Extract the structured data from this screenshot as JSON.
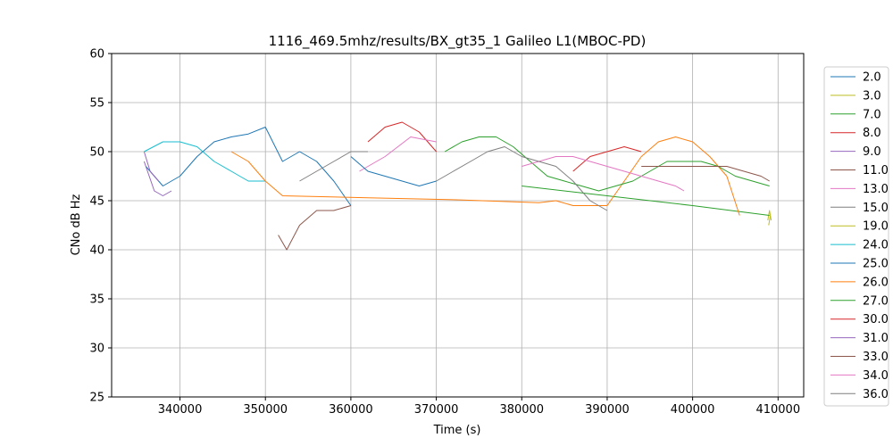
{
  "chart_data": {
    "type": "line",
    "title": "1116_469.5mhz/results/BX_gt35_1 Galileo L1(MBOC-PD)",
    "xlabel": "Time (s)",
    "ylabel": "CNo dB Hz",
    "xlim": [
      332000,
      413000
    ],
    "ylim": [
      25,
      60
    ],
    "xticks": [
      340000,
      350000,
      360000,
      370000,
      380000,
      390000,
      400000,
      410000
    ],
    "yticks": [
      25,
      30,
      35,
      40,
      45,
      50,
      55,
      60
    ],
    "grid": true,
    "legend_position": "outside-right",
    "series": [
      {
        "name": "2.0",
        "color": "#1f77b4",
        "x": [
          336000,
          338000,
          340000,
          342000,
          344000,
          346000,
          348000,
          350000,
          352000,
          354000,
          356000,
          358000,
          360000
        ],
        "y": [
          48.5,
          46.5,
          47.5,
          49.5,
          51,
          51.5,
          51.8,
          52.5,
          49,
          50,
          49,
          47,
          44.5
        ]
      },
      {
        "name": "3.0",
        "color": "#bcbd22",
        "x": [
          408800,
          409000,
          409200
        ],
        "y": [
          43,
          44,
          43
        ]
      },
      {
        "name": "7.0",
        "color": "#2ca02c",
        "x": [
          380000,
          390000,
          400000,
          409000
        ],
        "y": [
          46.5,
          45.5,
          44.5,
          43.5
        ]
      },
      {
        "name": "8.0",
        "color": "#d62728",
        "x": [
          362000,
          364000,
          366000,
          368000,
          370000
        ],
        "y": [
          51,
          52.5,
          53,
          52,
          50
        ]
      },
      {
        "name": "9.0",
        "color": "#9467bd",
        "x": [
          335800,
          336500,
          337000,
          337500
        ],
        "y": [
          50,
          48,
          47.5,
          47
        ]
      },
      {
        "name": "11.0",
        "color": "#8c564b",
        "x": [
          351500,
          352500,
          354000,
          356000,
          358000,
          360000
        ],
        "y": [
          41.5,
          40,
          42.5,
          44,
          44,
          44.5
        ]
      },
      {
        "name": "13.0",
        "color": "#e377c2",
        "x": [
          361000,
          364000,
          367000,
          370000
        ],
        "y": [
          48,
          49.5,
          51.5,
          51
        ]
      },
      {
        "name": "15.0",
        "color": "#7f7f7f",
        "x": [
          354000,
          356000,
          358000,
          360000,
          362000
        ],
        "y": [
          47,
          48,
          49,
          50,
          50
        ]
      },
      {
        "name": "19.0",
        "color": "#bcbd22",
        "x": [
          408900,
          409100
        ],
        "y": [
          42.5,
          43.5
        ]
      },
      {
        "name": "24.0",
        "color": "#17becf",
        "x": [
          335800,
          338000,
          340000,
          342000,
          344000,
          346000,
          348000,
          350000
        ],
        "y": [
          50,
          51,
          51,
          50.5,
          49,
          48,
          47,
          47
        ]
      },
      {
        "name": "25.0",
        "color": "#1f77b4",
        "x": [
          360000,
          362000,
          364000,
          366000,
          368000,
          370000
        ],
        "y": [
          49.5,
          48,
          47.5,
          47,
          46.5,
          47
        ]
      },
      {
        "name": "26.0",
        "color": "#ff7f0e",
        "x": [
          346000,
          348000,
          350000,
          352000,
          362000,
          372000,
          382000,
          384000,
          386000,
          390000,
          392000,
          394000,
          396000,
          398000,
          400000,
          402000,
          404000,
          405500
        ],
        "y": [
          50,
          49,
          47,
          45.5,
          45.3,
          45.1,
          44.8,
          45,
          44.5,
          44.5,
          47,
          49.5,
          51,
          51.5,
          51,
          49.5,
          47.5,
          43.5
        ]
      },
      {
        "name": "27.0",
        "color": "#2ca02c",
        "x": [
          371000,
          373000,
          375000,
          377000,
          379000,
          381000,
          383000,
          385000,
          387000,
          389000,
          391000,
          393000,
          395000,
          397000,
          399000,
          401000,
          403000,
          405000,
          407000,
          409000
        ],
        "y": [
          50,
          51,
          51.5,
          51.5,
          50.5,
          49,
          47.5,
          47,
          46.5,
          46,
          46.5,
          47,
          48,
          49,
          49,
          49,
          48.5,
          47.5,
          47,
          46.5
        ]
      },
      {
        "name": "30.0",
        "color": "#d62728",
        "x": [
          386000,
          388000,
          390000,
          392000,
          394000
        ],
        "y": [
          48,
          49.5,
          50,
          50.5,
          50
        ]
      },
      {
        "name": "31.0",
        "color": "#9467bd",
        "x": [
          335800,
          337000,
          338000,
          339000
        ],
        "y": [
          49,
          46,
          45.5,
          46
        ]
      },
      {
        "name": "33.0",
        "color": "#8c564b",
        "x": [
          394000,
          396000,
          398000,
          400000,
          402000,
          404000,
          406000,
          408000,
          409000
        ],
        "y": [
          48.5,
          48.5,
          48.5,
          48.5,
          48.5,
          48.5,
          48,
          47.5,
          47
        ]
      },
      {
        "name": "34.0",
        "color": "#e377c2",
        "x": [
          380000,
          382000,
          384000,
          386000,
          388000,
          390000,
          392000,
          394000,
          396000,
          398000,
          399000
        ],
        "y": [
          48.5,
          49,
          49.5,
          49.5,
          49,
          48.5,
          48,
          47.5,
          47,
          46.5,
          46
        ]
      },
      {
        "name": "36.0",
        "color": "#7f7f7f",
        "x": [
          370000,
          372000,
          374000,
          376000,
          378000,
          380000,
          382000,
          384000,
          386000,
          388000,
          390000
        ],
        "y": [
          47,
          48,
          49,
          50,
          50.5,
          49.5,
          49,
          48.5,
          47,
          45,
          44
        ]
      }
    ]
  }
}
